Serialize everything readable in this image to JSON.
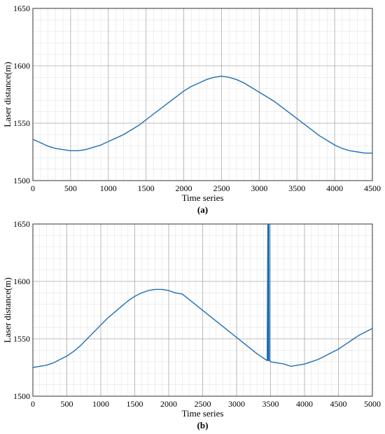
{
  "chart_data": [
    {
      "type": "line",
      "caption": "(a)",
      "xlabel": "Time series",
      "ylabel": "Laser distance(m)",
      "xlim": [
        0,
        4500
      ],
      "ylim": [
        1500,
        1650
      ],
      "xticks": [
        0,
        500,
        1000,
        1500,
        2000,
        2500,
        3000,
        3500,
        4000,
        4500
      ],
      "yticks": [
        1500,
        1550,
        1600,
        1650
      ],
      "grid": true,
      "line_color": "#1f6fb4",
      "series": [
        {
          "x": [
            0,
            100,
            200,
            300,
            400,
            500,
            600,
            700,
            800,
            900,
            1000,
            1100,
            1200,
            1300,
            1400,
            1500,
            1600,
            1700,
            1800,
            1900,
            2000,
            2100,
            2200,
            2300,
            2400,
            2500,
            2600,
            2700,
            2800,
            2900,
            3000,
            3100,
            3200,
            3300,
            3400,
            3500,
            3600,
            3700,
            3800,
            3900,
            4000,
            4100,
            4200,
            4300,
            4400,
            4500
          ],
          "y": [
            1536,
            1533,
            1530,
            1528,
            1527,
            1526,
            1526,
            1527,
            1529,
            1531,
            1534,
            1537,
            1540,
            1544,
            1548,
            1553,
            1558,
            1563,
            1568,
            1573,
            1578,
            1582,
            1585,
            1588,
            1590,
            1591,
            1590,
            1588,
            1585,
            1581,
            1577,
            1573,
            1569,
            1564,
            1559,
            1554,
            1549,
            1544,
            1539,
            1535,
            1531,
            1528,
            1526,
            1525,
            1524,
            1524
          ]
        }
      ]
    },
    {
      "type": "line",
      "caption": "(b)",
      "xlabel": "Time series",
      "ylabel": "Laser distance(m)",
      "xlim": [
        0,
        5000
      ],
      "ylim": [
        1500,
        1650
      ],
      "xticks": [
        0,
        500,
        1000,
        1500,
        2000,
        2500,
        3000,
        3500,
        4000,
        4500,
        5000
      ],
      "yticks": [
        1500,
        1550,
        1600,
        1650
      ],
      "grid": true,
      "line_color": "#1f6fb4",
      "series": [
        {
          "x": [
            0,
            100,
            200,
            300,
            400,
            500,
            600,
            700,
            800,
            900,
            1000,
            1100,
            1200,
            1300,
            1400,
            1500,
            1600,
            1700,
            1800,
            1900,
            2000,
            2100,
            2200,
            3300,
            3400,
            3450,
            3460,
            3465,
            3470,
            3475,
            3480,
            3485,
            3490,
            3500,
            3600,
            3700,
            3800,
            3900,
            4000,
            4100,
            4200,
            4300,
            4400,
            4500,
            4600,
            4700,
            4800,
            4900,
            5000
          ],
          "y": [
            1525,
            1526,
            1527,
            1529,
            1532,
            1535,
            1539,
            1544,
            1550,
            1556,
            1562,
            1568,
            1573,
            1578,
            1583,
            1587,
            1590,
            1592,
            1593,
            1593,
            1592,
            1590,
            1589,
            1537,
            1533,
            1531,
            1650,
            1531,
            1650,
            1531,
            1650,
            1531,
            1531,
            1530,
            1529,
            1528,
            1526,
            1527,
            1528,
            1530,
            1532,
            1535,
            1538,
            1541,
            1545,
            1549,
            1553,
            1556,
            1559
          ]
        }
      ]
    }
  ]
}
